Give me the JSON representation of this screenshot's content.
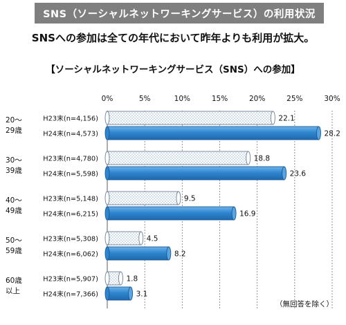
{
  "header": {
    "banner": "SNS（ソーシャルネットワーキングサービス）の利用状況",
    "subtitle": "SNSへの参加は全ての年代において昨年よりも利用が拡大。"
  },
  "note": "（無回答を除く）",
  "colors": {
    "h23_fill": "#ffffff",
    "h23_pattern": "#9ab7d3",
    "h24_fill": "#2f86cf",
    "h24_stroke": "#1a5a96",
    "banner": "#7f7f7f",
    "grid": "#777777"
  },
  "chart_data": {
    "type": "bar",
    "orientation": "horizontal",
    "title": "【ソーシャルネットワーキングサービス（SNS）への参加】",
    "xlim": [
      0,
      30
    ],
    "ticks": [
      0,
      5,
      10,
      15,
      20,
      25,
      30
    ],
    "tick_labels": [
      "0%",
      "5%",
      "10%",
      "15%",
      "20%",
      "25%",
      "30%"
    ],
    "grid": true,
    "groups": [
      {
        "label_line1": "20～",
        "label_line2": "29歳",
        "bars": [
          {
            "series": "H23",
            "label": "H23末(n=4,156)",
            "value": 22.1,
            "value_label": "22.1"
          },
          {
            "series": "H24",
            "label": "H24末(n=4,573)",
            "value": 28.2,
            "value_label": "28.2"
          }
        ]
      },
      {
        "label_line1": "30～",
        "label_line2": "39歳",
        "bars": [
          {
            "series": "H23",
            "label": "H23末(n=4,780)",
            "value": 18.8,
            "value_label": "18.8"
          },
          {
            "series": "H24",
            "label": "H24末(n=5,598)",
            "value": 23.6,
            "value_label": "23.6"
          }
        ]
      },
      {
        "label_line1": "40～",
        "label_line2": "49歳",
        "bars": [
          {
            "series": "H23",
            "label": "H23末(n=5,148)",
            "value": 9.5,
            "value_label": "9.5"
          },
          {
            "series": "H24",
            "label": "H24末(n=6,215)",
            "value": 16.9,
            "value_label": "16.9"
          }
        ]
      },
      {
        "label_line1": "50～",
        "label_line2": "59歳",
        "bars": [
          {
            "series": "H23",
            "label": "H23末(n=5,308)",
            "value": 4.5,
            "value_label": "4.5"
          },
          {
            "series": "H24",
            "label": "H24末(n=6,062)",
            "value": 8.2,
            "value_label": "8.2"
          }
        ]
      },
      {
        "label_line1": "60歳",
        "label_line2": "以上",
        "bars": [
          {
            "series": "H23",
            "label": "H23末(n=5,907)",
            "value": 1.8,
            "value_label": "1.8"
          },
          {
            "series": "H24",
            "label": "H24末(n=7,366)",
            "value": 3.1,
            "value_label": "3.1"
          }
        ]
      }
    ]
  }
}
